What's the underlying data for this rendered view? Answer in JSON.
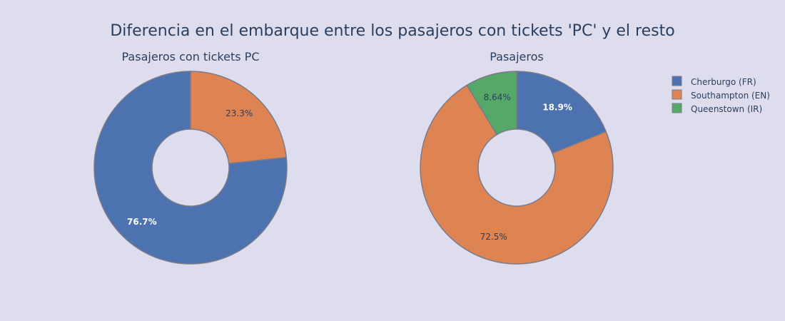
{
  "title": "Diferencia en el embarque entre los pasajeros con tickets 'PC' y el resto",
  "chart_data": [
    {
      "type": "pie",
      "hole": true,
      "subtitle": "Pasajeros con tickets PC",
      "slices": [
        {
          "label": "Cherburgo (FR)",
          "value": 76.7,
          "text": "76.7%",
          "color": "#4c72b0"
        },
        {
          "label": "Southampton (EN)",
          "value": 23.3,
          "text": "23.3%",
          "color": "#dd8452"
        }
      ]
    },
    {
      "type": "pie",
      "hole": true,
      "subtitle": "Pasajeros",
      "slices": [
        {
          "label": "Cherburgo (FR)",
          "value": 18.9,
          "text": "18.9%",
          "color": "#4c72b0"
        },
        {
          "label": "Southampton (EN)",
          "value": 72.5,
          "text": "72.5%",
          "color": "#dd8452"
        },
        {
          "label": "Queenstown (IR)",
          "value": 8.64,
          "text": "8.64%",
          "color": "#55a868"
        }
      ]
    }
  ],
  "legend": {
    "placement": "top-right",
    "items": [
      {
        "label": "Cherburgo (FR)",
        "color": "#4c72b0"
      },
      {
        "label": "Southampton (EN)",
        "color": "#dd8452"
      },
      {
        "label": "Queenstown (IR)",
        "color": "#55a868"
      }
    ]
  },
  "colors": {
    "background": "#dedded",
    "slice_border": "#7a7a8a",
    "title_text": "#2a3f5f"
  }
}
